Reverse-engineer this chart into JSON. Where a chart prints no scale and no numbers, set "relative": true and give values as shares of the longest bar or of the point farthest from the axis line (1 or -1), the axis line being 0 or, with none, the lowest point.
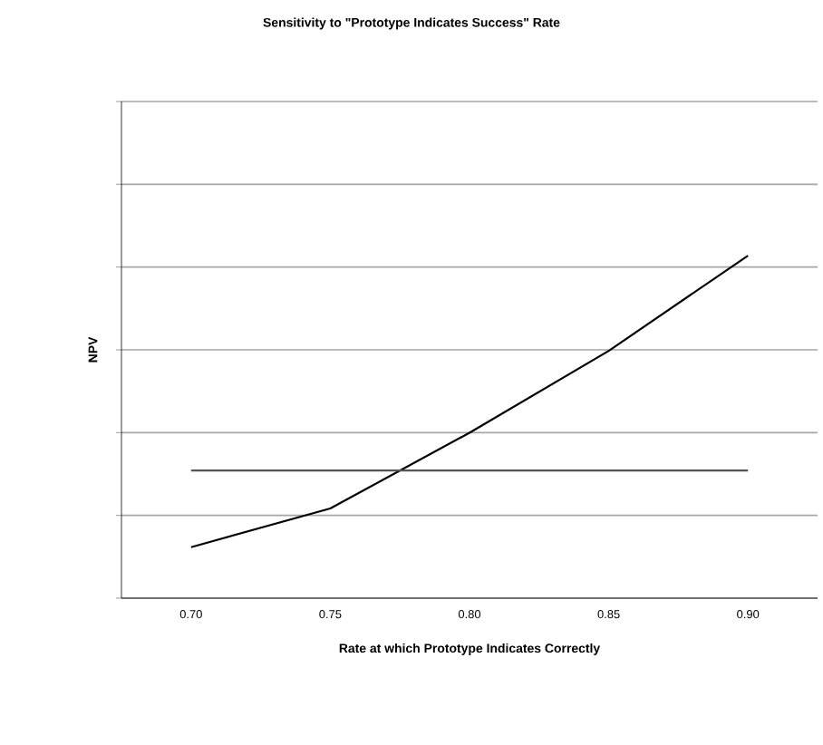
{
  "chart_data": {
    "type": "line",
    "title": "Sensitivity to \"Prototype Indicates Success\" Rate",
    "xlabel": "Rate at which Prototype Indicates Correctly",
    "ylabel": "NPV",
    "categories": [
      "0.70",
      "0.75",
      "0.80",
      "0.85",
      "0.90"
    ],
    "relative": true,
    "series": [
      {
        "color": "#000000",
        "values": [
          0.149,
          0.262,
          0.483,
          0.722,
          1.0
        ]
      },
      {
        "color": "#555555",
        "values": [
          0.373,
          0.373,
          0.373,
          0.373,
          0.373
        ]
      }
    ],
    "grid": "y",
    "legend": false,
    "marker": "none",
    "line_style": "solid"
  }
}
